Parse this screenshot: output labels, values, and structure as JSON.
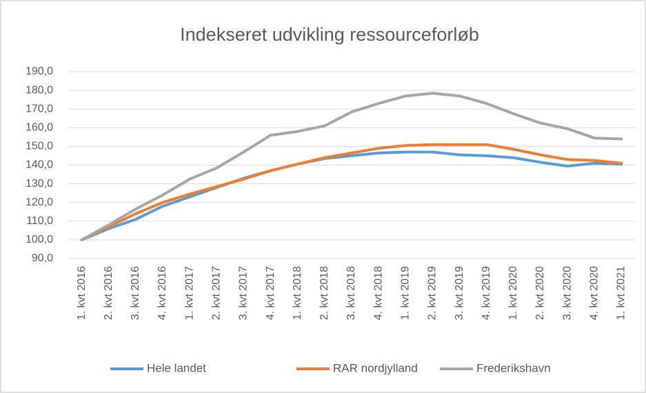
{
  "chart_data": {
    "type": "line",
    "title": "Indekseret udvikling ressourceforløb",
    "categories": [
      "1. kvt 2016",
      "2. kvt 2016",
      "3. kvt 2016",
      "4. kvt 2016",
      "1. kvt 2017",
      "2. kvt 2017",
      "3. kvt 2017",
      "4. kvt 2017",
      "1. kvt 2018",
      "2. kvt 2018",
      "3. kvt 2018",
      "4. kvt 2018",
      "1. kvt 2019",
      "2. kvt 2019",
      "3. kvt 2019",
      "4. kvt 2019",
      "1. kvt 2020",
      "2. kvt 2020",
      "3. kvt 2020",
      "4. kvt 2020",
      "1. kvt 2021"
    ],
    "series": [
      {
        "name": "Hele landet",
        "color": "#5b9bd5",
        "values": [
          100,
          106,
          111,
          118,
          123,
          128,
          133,
          137,
          140.5,
          143.5,
          145,
          146.5,
          147,
          147,
          145.5,
          145,
          144,
          141.5,
          139.5,
          141,
          140.5
        ]
      },
      {
        "name": "RAR nordjylland",
        "color": "#ed7d31",
        "values": [
          100,
          107,
          114,
          120,
          124.5,
          128.5,
          132.5,
          137,
          140.5,
          144,
          146.5,
          149,
          150.5,
          151,
          151,
          151,
          148.5,
          145.5,
          143,
          142.5,
          141
        ]
      },
      {
        "name": "Frederikshavn",
        "color": "#a5a5a5",
        "values": [
          100,
          108,
          116.5,
          124,
          132.5,
          138.5,
          147,
          156,
          158,
          161,
          168.5,
          173,
          177,
          178.5,
          177,
          173,
          167.5,
          162.5,
          159.5,
          154.5,
          154
        ]
      }
    ],
    "ylim": [
      90,
      190
    ],
    "yticks": [
      {
        "value": 90,
        "label": "90,0"
      },
      {
        "value": 100,
        "label": "100,0"
      },
      {
        "value": 110,
        "label": "110,0"
      },
      {
        "value": 120,
        "label": "120,0"
      },
      {
        "value": 130,
        "label": "130,0"
      },
      {
        "value": 140,
        "label": "140,0"
      },
      {
        "value": 150,
        "label": "150,0"
      },
      {
        "value": 160,
        "label": "160,0"
      },
      {
        "value": 170,
        "label": "170,0"
      },
      {
        "value": 180,
        "label": "180,0"
      },
      {
        "value": 190,
        "label": "190,0"
      }
    ],
    "grid": true,
    "legend": "bottom"
  }
}
